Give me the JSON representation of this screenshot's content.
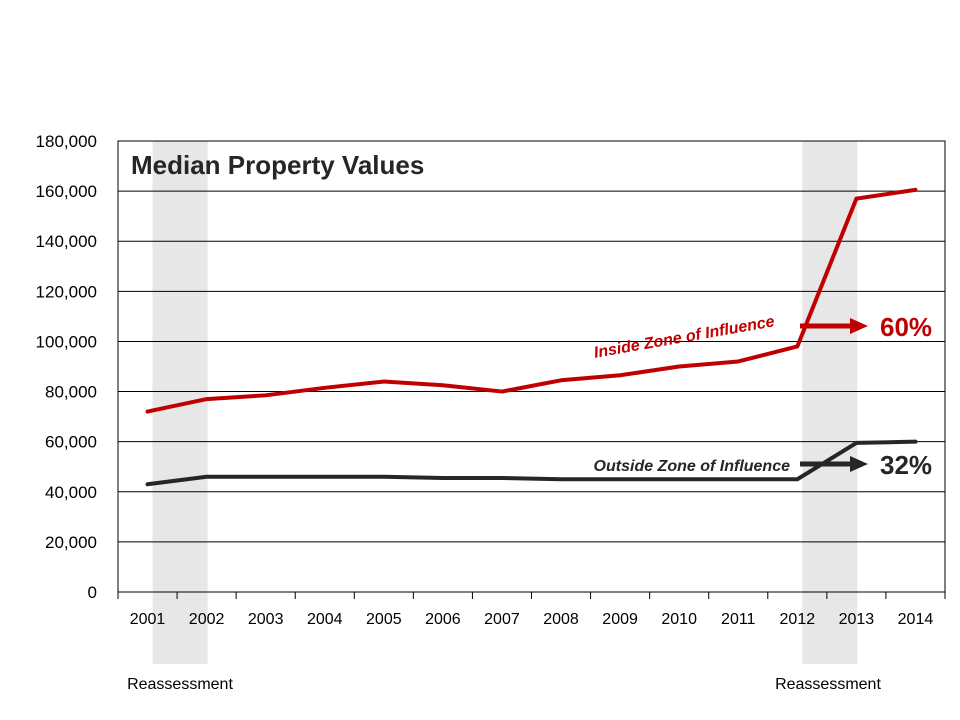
{
  "chart_data": {
    "type": "line",
    "title": "Median Property Values",
    "categories": [
      "2001",
      "2002",
      "2003",
      "2004",
      "2005",
      "2006",
      "2007",
      "2008",
      "2009",
      "2010",
      "2011",
      "2012",
      "2013",
      "2014"
    ],
    "ylim": [
      0,
      180000
    ],
    "yticks": [
      "0",
      "20,000",
      "40,000",
      "60,000",
      "80,000",
      "100,000",
      "120,000",
      "140,000",
      "160,000",
      "180,000"
    ],
    "grid": true,
    "series": [
      {
        "name": "Inside Zone of Influence",
        "color": "#c00000",
        "values": [
          72000,
          77000,
          78500,
          81500,
          84000,
          82500,
          80000,
          84500,
          86500,
          90000,
          92000,
          98000,
          157000,
          160500
        ]
      },
      {
        "name": "Outside Zone of Influence",
        "color": "#262626",
        "values": [
          43000,
          46000,
          46000,
          46000,
          46000,
          45500,
          45500,
          45000,
          45000,
          45000,
          45000,
          45000,
          59500,
          60000
        ]
      }
    ],
    "annotations": [
      {
        "text": "60%",
        "color": "#c00000"
      },
      {
        "text": "32%",
        "color": "#262626"
      }
    ],
    "reassessment_label": "Reassessment",
    "reassessment_bands": [
      [
        "2001",
        "2002"
      ],
      [
        "2012",
        "2013"
      ]
    ]
  }
}
